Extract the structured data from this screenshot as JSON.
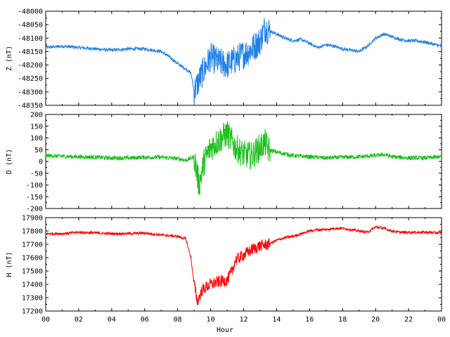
{
  "chart_data": [
    {
      "type": "line",
      "panel": "Z",
      "ylabel": "Z (nT)",
      "ylim": [
        -48350,
        -48000
      ],
      "yticks": [
        "-48000",
        "-48050",
        "-48100",
        "-48150",
        "-48200",
        "-48250",
        "-48300",
        "-48350"
      ],
      "ytick_values": [
        -48000,
        -48050,
        -48100,
        -48150,
        -48200,
        -48250,
        -48300,
        -48350
      ],
      "color": "#1f7fe8",
      "grid": false,
      "x": [
        0,
        1,
        2,
        3,
        4,
        5,
        6,
        7,
        7.5,
        8,
        8.5,
        8.8,
        9.0,
        9.2,
        9.5,
        10,
        10.5,
        11,
        11.5,
        12,
        12.5,
        13,
        13.3,
        13.5,
        14,
        14.5,
        15,
        15.5,
        16,
        16.5,
        17,
        17.5,
        18,
        18.5,
        19,
        19.5,
        20,
        20.5,
        21,
        21.5,
        22,
        22.5,
        23,
        24
      ],
      "values": [
        -48135,
        -48130,
        -48135,
        -48140,
        -48145,
        -48140,
        -48140,
        -48150,
        -48170,
        -48195,
        -48215,
        -48230,
        -48300,
        -48270,
        -48230,
        -48170,
        -48190,
        -48200,
        -48180,
        -48160,
        -48140,
        -48110,
        -48060,
        -48070,
        -48085,
        -48100,
        -48110,
        -48105,
        -48120,
        -48135,
        -48125,
        -48130,
        -48140,
        -48145,
        -48150,
        -48130,
        -48100,
        -48085,
        -48095,
        -48105,
        -48110,
        -48110,
        -48115,
        -48130
      ]
    },
    {
      "type": "line",
      "panel": "D",
      "ylabel": "D (nT)",
      "ylim": [
        -200,
        200
      ],
      "yticks": [
        "200",
        "150",
        "100",
        "50",
        "0",
        "-50",
        "-100",
        "-150",
        "-200"
      ],
      "ytick_values": [
        200,
        150,
        100,
        50,
        0,
        -50,
        -100,
        -150,
        -200
      ],
      "color": "#18c018",
      "grid": false,
      "x": [
        0,
        1,
        2,
        3,
        4,
        5,
        6,
        7,
        8,
        8.5,
        9,
        9.3,
        9.6,
        10,
        10.5,
        11,
        11.5,
        12,
        12.5,
        13,
        13.3,
        13.5,
        14,
        15,
        16,
        17,
        18,
        19,
        20,
        20.5,
        21,
        22,
        23,
        24
      ],
      "values": [
        25,
        22,
        20,
        18,
        15,
        15,
        18,
        18,
        12,
        5,
        20,
        -100,
        0,
        60,
        90,
        120,
        60,
        30,
        25,
        60,
        80,
        50,
        40,
        25,
        20,
        15,
        18,
        20,
        25,
        30,
        20,
        15,
        15,
        20
      ]
    },
    {
      "type": "line",
      "panel": "H",
      "ylabel": "H (nT)",
      "ylim": [
        17200,
        17900
      ],
      "yticks": [
        "17900",
        "17800",
        "17700",
        "17600",
        "17500",
        "17400",
        "17300",
        "17200"
      ],
      "ytick_values": [
        17900,
        17800,
        17700,
        17600,
        17500,
        17400,
        17300,
        17200
      ],
      "color": "#ff0000",
      "grid": false,
      "x": [
        0,
        1,
        2,
        3,
        4,
        5,
        6,
        7,
        8,
        8.5,
        8.8,
        9.0,
        9.2,
        9.5,
        10,
        10.5,
        11,
        11.3,
        11.5,
        12,
        12.5,
        13,
        13.5,
        14,
        14.5,
        15,
        15.5,
        16,
        16.5,
        17,
        17.5,
        18,
        18.5,
        19,
        19.5,
        20,
        20.5,
        21,
        21.5,
        22,
        23,
        24
      ],
      "values": [
        17780,
        17780,
        17790,
        17785,
        17780,
        17780,
        17785,
        17770,
        17760,
        17740,
        17600,
        17400,
        17270,
        17360,
        17400,
        17420,
        17430,
        17500,
        17580,
        17620,
        17660,
        17690,
        17700,
        17730,
        17750,
        17760,
        17780,
        17800,
        17810,
        17810,
        17820,
        17820,
        17810,
        17800,
        17790,
        17830,
        17820,
        17800,
        17790,
        17790,
        17790,
        17785
      ]
    }
  ],
  "xaxis": {
    "label": "Hour",
    "range": [
      0,
      24
    ],
    "ticks": [
      "00",
      "02",
      "04",
      "06",
      "08",
      "10",
      "12",
      "14",
      "16",
      "18",
      "20",
      "22",
      "00"
    ],
    "tick_values": [
      0,
      2,
      4,
      6,
      8,
      10,
      12,
      14,
      16,
      18,
      20,
      22,
      24
    ]
  }
}
